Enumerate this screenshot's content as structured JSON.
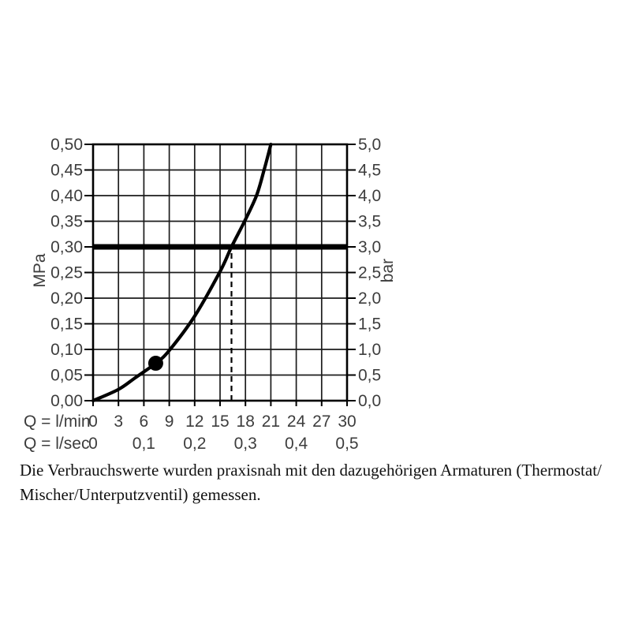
{
  "caption": {
    "lines": [
      "Die Verbrauchswerte wurden praxisnah mit den dazugehörigen Armaturen (Thermostat/",
      "Mischer/Unterputzventil) gemessen."
    ]
  },
  "colors": {
    "line": "#000000",
    "grid": "#1c1c1c",
    "label": "#3d3d3d"
  },
  "chart_data": {
    "type": "line",
    "title": "",
    "grid": "on",
    "x_axis": {
      "prefix_lmin": "Q = l/min",
      "prefix_lsec": "Q = l/sec",
      "range": [
        0,
        30
      ],
      "lmin_tick_step": 3,
      "lmin_tick_labels": [
        "0",
        "3",
        "6",
        "9",
        "12",
        "15",
        "18",
        "21",
        "24",
        "27",
        "30"
      ],
      "lsec_tick_step_in_lmin": 6,
      "lsec_tick_labels": [
        "0",
        "0,1",
        "0,2",
        "0,3",
        "0,4",
        "0,5"
      ]
    },
    "y_left": {
      "unit": "MPa",
      "range": [
        0,
        0.5
      ],
      "tick_step": 0.05,
      "tick_labels": [
        "0,00",
        "0,05",
        "0,10",
        "0,15",
        "0,20",
        "0,25",
        "0,30",
        "0,35",
        "0,40",
        "0,45",
        "0,50"
      ]
    },
    "y_right": {
      "unit": "bar",
      "range": [
        0,
        5
      ],
      "tick_step": 0.5,
      "tick_labels": [
        "0,0",
        "0,5",
        "1,0",
        "1,5",
        "2,0",
        "2,5",
        "3,0",
        "3,5",
        "4,0",
        "4,5",
        "5,0"
      ]
    },
    "curve_points_q_mpa": [
      [
        0,
        0
      ],
      [
        3,
        0.022
      ],
      [
        5,
        0.045
      ],
      [
        7.4,
        0.073
      ],
      [
        9,
        0.098
      ],
      [
        12,
        0.165
      ],
      [
        15,
        0.252
      ],
      [
        16.35,
        0.3
      ],
      [
        17.9,
        0.35
      ],
      [
        19.3,
        0.4
      ],
      [
        20.2,
        0.45
      ],
      [
        21,
        0.5
      ]
    ],
    "marker_point": {
      "q_lmin": 7.4,
      "mpa": 0.073
    },
    "reference_line": {
      "mpa": 0.3,
      "bar": 3.0
    },
    "dashed_line": {
      "q_lmin": 16.35,
      "from_mpa": 0,
      "to_mpa": 0.293
    }
  }
}
